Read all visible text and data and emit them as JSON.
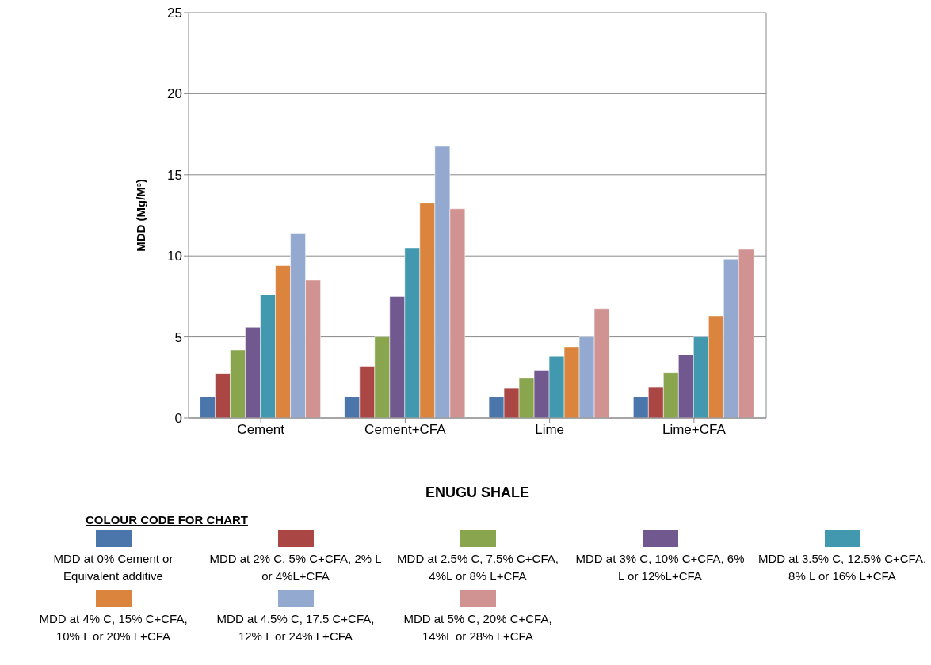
{
  "chart_data": {
    "type": "bar",
    "xlabel": "ENUGU SHALE",
    "ylabel": "MDD (Mg/M³)",
    "legend_title": "COLOUR CODE FOR CHART",
    "categories": [
      "Cement",
      "Cement+CFA",
      "Lime",
      "Lime+CFA"
    ],
    "series": [
      {
        "name": "MDD at 0% Cement or Equivalent additive",
        "color": "#4a76ac",
        "values": [
          1.3,
          1.3,
          1.3,
          1.3
        ]
      },
      {
        "name": "MDD at 2% C, 5% C+CFA, 2% L or 4%L+CFA",
        "color": "#aa4644",
        "values": [
          2.75,
          3.2,
          1.85,
          1.9
        ]
      },
      {
        "name": "MDD at 2.5% C, 7.5% C+CFA, 4%L or 8% L+CFA",
        "color": "#89a54e",
        "values": [
          4.2,
          5.0,
          2.45,
          2.8
        ]
      },
      {
        "name": "MDD at 3% C, 10% C+CFA, 6% L or 12%L+CFA",
        "color": "#71588f",
        "values": [
          5.6,
          7.5,
          2.95,
          3.9
        ]
      },
      {
        "name": "MDD at 3.5% C, 12.5% C+CFA, 8% L or 16% L+CFA",
        "color": "#4198af",
        "values": [
          7.6,
          10.5,
          3.8,
          5.0
        ]
      },
      {
        "name": "MDD at 4% C, 15% C+CFA, 10% L or 20% L+CFA",
        "color": "#db843d",
        "values": [
          9.4,
          13.25,
          4.4,
          6.3
        ]
      },
      {
        "name": "MDD at 4.5% C, 17.5 C+CFA, 12% L or 24% L+CFA",
        "color": "#93a9cf",
        "values": [
          11.4,
          16.75,
          5.0,
          9.8
        ]
      },
      {
        "name": "MDD at 5% C, 20% C+CFA, 14%L or 28% L+CFA",
        "color": "#d19392",
        "values": [
          8.5,
          12.9,
          6.75,
          10.4
        ]
      }
    ],
    "ylim": [
      0,
      25
    ],
    "yticks": [
      0,
      5,
      10,
      15,
      20,
      25
    ],
    "grid": "y",
    "legend": "bottom"
  }
}
